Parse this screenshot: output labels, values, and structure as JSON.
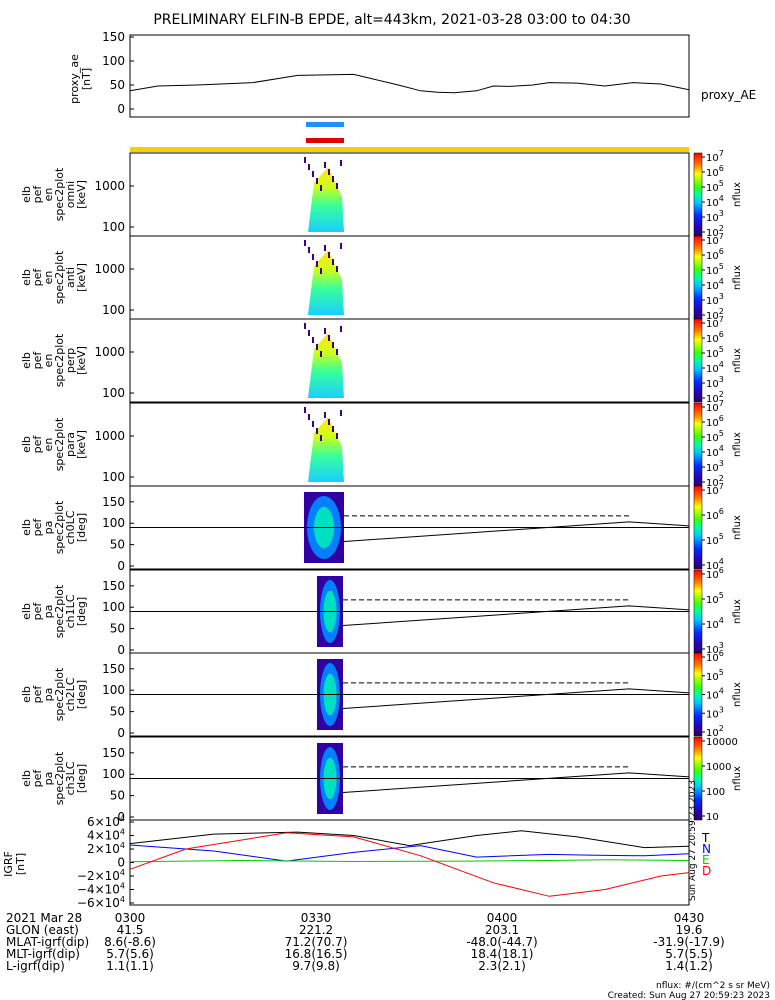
{
  "title": "PRELIMINARY ELFIN-B EPDE, alt=443km, 2021-03-28 03:00 to 04:30",
  "chart_data": [
    {
      "type": "line",
      "panel": "proxy_ae",
      "ylabel": [
        "proxy_ae",
        "[nT]"
      ],
      "ylim": [
        0,
        150
      ],
      "yticks": [
        "150",
        "100",
        "50",
        "0"
      ],
      "legend": "proxy_AE",
      "x": [
        0,
        5,
        12,
        22,
        30,
        40,
        48,
        52,
        55,
        58,
        62,
        65,
        68,
        72,
        75,
        80,
        85,
        90,
        95,
        100
      ],
      "y": [
        38,
        48,
        50,
        55,
        70,
        72,
        50,
        38,
        35,
        34,
        38,
        48,
        47,
        50,
        55,
        54,
        48,
        55,
        52,
        40
      ]
    },
    {
      "type": "heatmap",
      "panel": "elb pef en spec2plot omni",
      "ylabel": [
        "elb",
        "pef",
        "en",
        "spec2plot",
        "omni",
        "[keV]"
      ],
      "yticks": [
        "1000",
        "100"
      ],
      "colorbar_label": "nflux",
      "colorbar_ticks": [
        "10^7",
        "10^6",
        "10^5",
        "10^4",
        "10^3",
        "10^2"
      ]
    },
    {
      "type": "heatmap",
      "panel": "elb pef en spec2plot anti",
      "ylabel": [
        "elb",
        "pef",
        "en",
        "spec2plot",
        "anti",
        "[keV]"
      ],
      "yticks": [
        "1000",
        "100"
      ],
      "colorbar_label": "nflux",
      "colorbar_ticks": [
        "10^7",
        "10^6",
        "10^5",
        "10^4",
        "10^3",
        "10^2"
      ]
    },
    {
      "type": "heatmap",
      "panel": "elb pef en spec2plot perp",
      "ylabel": [
        "elb",
        "pef",
        "en",
        "spec2plot",
        "perp",
        "[keV]"
      ],
      "yticks": [
        "1000",
        "100"
      ],
      "colorbar_label": "nflux",
      "colorbar_ticks": [
        "10^7",
        "10^6",
        "10^5",
        "10^4",
        "10^3",
        "10^2"
      ]
    },
    {
      "type": "heatmap",
      "panel": "elb pef en spec2plot para",
      "ylabel": [
        "elb",
        "pef",
        "en",
        "spec2plot",
        "para",
        "[keV]"
      ],
      "yticks": [
        "1000",
        "100"
      ],
      "colorbar_label": "nflux",
      "colorbar_ticks": [
        "10^7",
        "10^6",
        "10^5",
        "10^4",
        "10^3",
        "10^2"
      ]
    },
    {
      "type": "heatmap",
      "panel": "elb pef pa spec2plot ch0LC",
      "ylabel": [
        "elb",
        "pef",
        "pa",
        "spec2plot",
        "ch0LC",
        "[deg]"
      ],
      "ylim": [
        0,
        180
      ],
      "yticks": [
        "150",
        "100",
        "50",
        "0"
      ],
      "colorbar_label": "nflux",
      "colorbar_ticks": [
        "10^7",
        "10^6",
        "10^5",
        "10^4"
      ]
    },
    {
      "type": "heatmap",
      "panel": "elb pef pa spec2plot ch1LC",
      "ylabel": [
        "elb",
        "pef",
        "pa",
        "spec2plot",
        "ch1LC",
        "[deg]"
      ],
      "ylim": [
        0,
        180
      ],
      "yticks": [
        "150",
        "100",
        "50",
        "0"
      ],
      "colorbar_label": "nflux",
      "colorbar_ticks": [
        "10^6",
        "10^5",
        "10^4",
        "10^3"
      ]
    },
    {
      "type": "heatmap",
      "panel": "elb pef pa spec2plot ch2LC",
      "ylabel": [
        "elb",
        "pef",
        "pa",
        "spec2plot",
        "ch2LC",
        "[deg]"
      ],
      "ylim": [
        0,
        180
      ],
      "yticks": [
        "150",
        "100",
        "50",
        "0"
      ],
      "colorbar_label": "nflux",
      "colorbar_ticks": [
        "10^6",
        "10^5",
        "10^4",
        "10^3",
        "10^2"
      ]
    },
    {
      "type": "heatmap",
      "panel": "elb pef pa spec2plot ch3LC",
      "ylabel": [
        "elb",
        "pef",
        "pa",
        "spec2plot",
        "ch3LC",
        "[deg]"
      ],
      "ylim": [
        0,
        180
      ],
      "yticks": [
        "150",
        "100",
        "50",
        "0"
      ],
      "colorbar_label": "nflux",
      "colorbar_ticks": [
        "10000",
        "1000",
        "100",
        "10"
      ]
    },
    {
      "type": "line",
      "panel": "IGRF",
      "ylabel": [
        "IGRF",
        "[nT]"
      ],
      "ylim": [
        -60000,
        60000
      ],
      "yticks": [
        "6×10^4",
        "4×10^4",
        "2×10^4",
        "0",
        "−2×10^4",
        "−4×10^4",
        "−6×10^4"
      ],
      "series": [
        {
          "name": "T",
          "color": "#000000"
        },
        {
          "name": "N",
          "color": "#0000ff"
        },
        {
          "name": "E",
          "color": "#00cc00"
        },
        {
          "name": "D",
          "color": "#ff0000"
        }
      ],
      "side_note": "Sun Aug 27 20:59:23 2023"
    }
  ],
  "x_axis": {
    "row_label": "2021 Mar 28",
    "ticks": [
      "0300",
      "0330",
      "0400",
      "0430"
    ]
  },
  "ephemeris": [
    {
      "label": "GLON (east)",
      "values": [
        "41.5",
        "221.2",
        "203.1",
        "19.6"
      ]
    },
    {
      "label": "MLAT-igrf(dip)",
      "values": [
        "8.6(-8.6)",
        "71.2(70.7)",
        "-48.0(-44.7)",
        "-31.9(-17.9)"
      ]
    },
    {
      "label": "MLT-igrf(dip)",
      "values": [
        "5.7(5.6)",
        "16.8(16.5)",
        "18.4(18.1)",
        "5.7(5.5)"
      ]
    },
    {
      "label": "L-igrf(dip)",
      "values": [
        "1.1(1.1)",
        "9.7(9.8)",
        "2.3(2.1)",
        "1.4(1.2)"
      ]
    }
  ],
  "footer": {
    "units": "nflux: #/(cm^2 s sr MeV)",
    "created": "Created: Sun Aug 27 20:59:23 2023"
  },
  "colors": {
    "status_bar": "#ffcc00",
    "bar_blue": "#1e90ff",
    "bar_red": "#dd0000"
  }
}
